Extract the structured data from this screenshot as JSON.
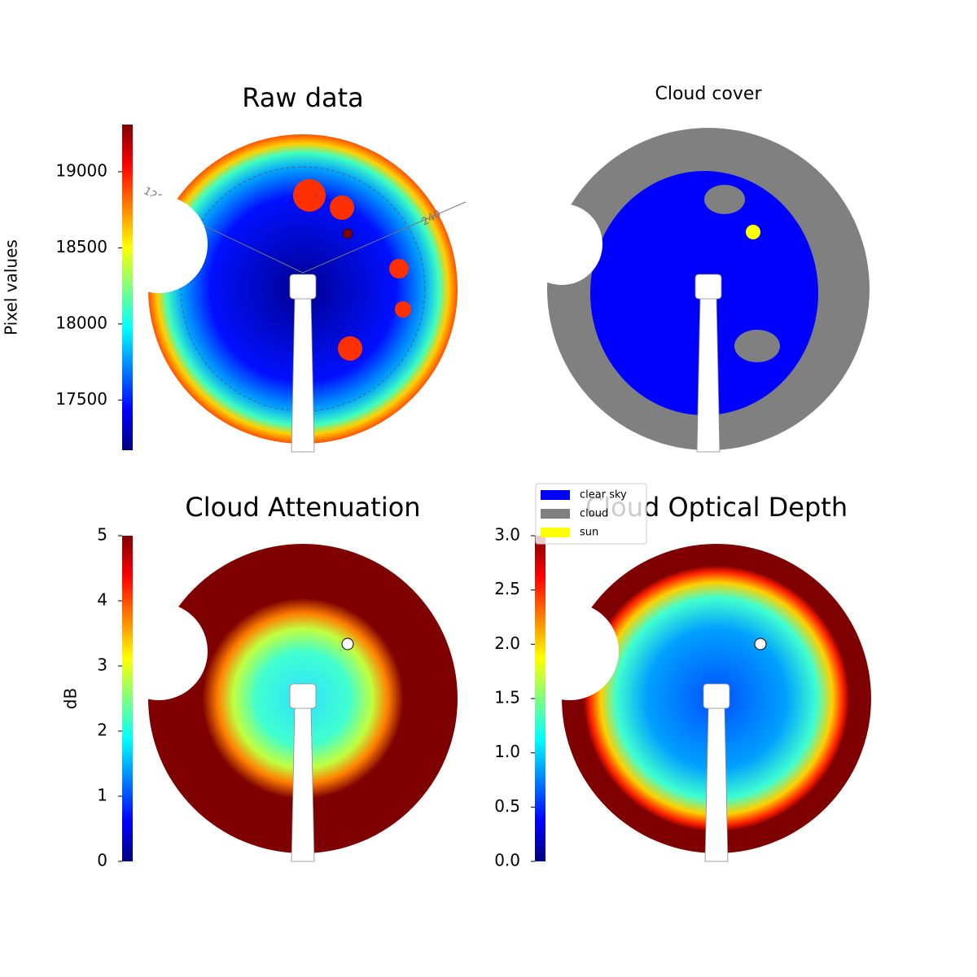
{
  "chart_data": [
    {
      "type": "heatmap",
      "title": "Raw data",
      "colorbar_label": "Pixel values",
      "clim": [
        17170,
        19310
      ],
      "cticks": [
        17500,
        18000,
        18500,
        19000
      ],
      "annotations": [
        "120",
        "240"
      ]
    },
    {
      "type": "classes",
      "title": "Cloud cover",
      "series": [
        {
          "name": "clear sky",
          "color": "#0000ff"
        },
        {
          "name": "cloud",
          "color": "#808080"
        },
        {
          "name": "sun",
          "color": "#ffff00"
        }
      ]
    },
    {
      "type": "heatmap",
      "title": "Cloud Attenuation",
      "colorbar_label": "dB",
      "clim": [
        0,
        5
      ],
      "cticks": [
        0,
        1,
        2,
        3,
        4,
        5
      ]
    },
    {
      "type": "heatmap",
      "title": "Cloud Optical Depth",
      "clim": [
        0,
        3
      ],
      "cticks": [
        {
          "value": 0,
          "label": "0.0"
        },
        {
          "value": 0.5,
          "label": "0.5"
        },
        {
          "value": 1,
          "label": "1.0"
        },
        {
          "value": 1.5,
          "label": "1.5"
        },
        {
          "value": 2,
          "label": "2.0"
        },
        {
          "value": 2.5,
          "label": "2.5"
        },
        {
          "value": 3,
          "label": "3.0"
        }
      ]
    }
  ]
}
